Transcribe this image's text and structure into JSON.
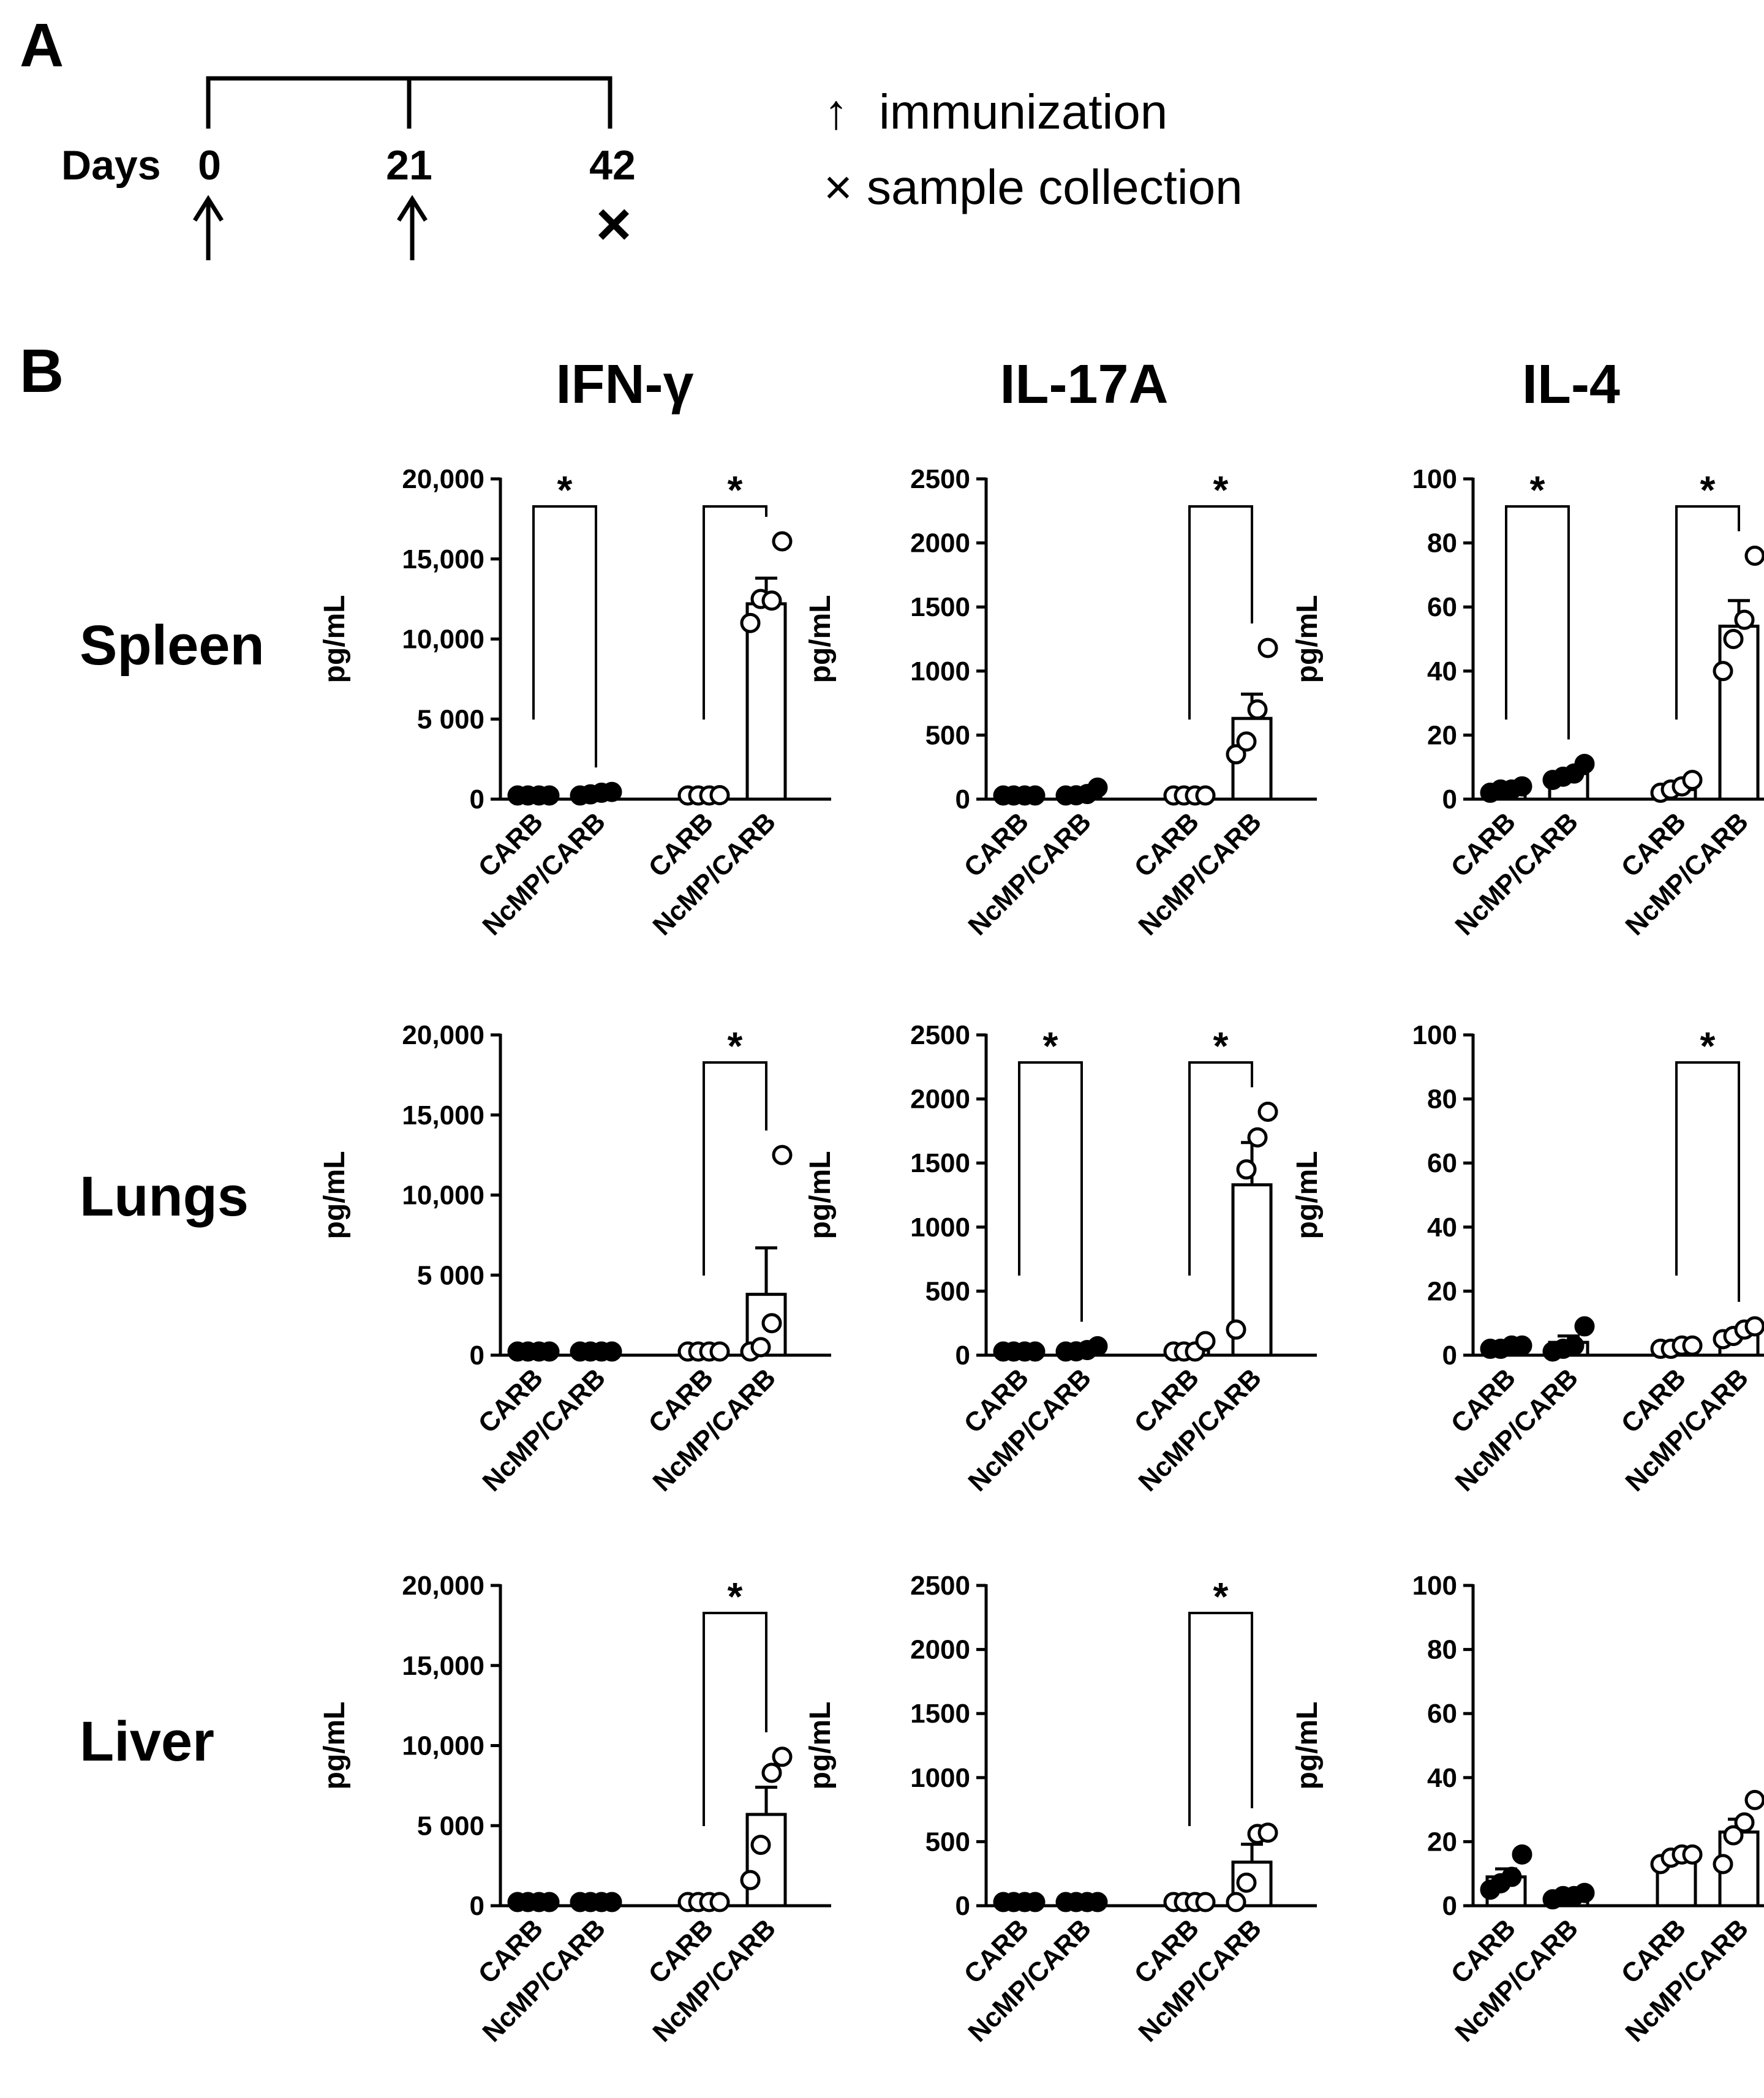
{
  "panel_a": {
    "panel_label": "A",
    "days_label": "Days",
    "days": [
      "0",
      "21",
      "42"
    ],
    "legend": {
      "immunization": "immunization",
      "sample_collection": "sample collection"
    },
    "arrow_glyph": "↑",
    "cross_glyph": "×"
  },
  "panel_b": {
    "panel_label": "B",
    "column_titles": [
      "IFN-γ",
      "IL-17A",
      "IL-4"
    ],
    "row_titles": [
      "Spleen",
      "Lungs",
      "Liver"
    ]
  },
  "chart_data": [
    {
      "type": "bar",
      "organ": "Spleen",
      "cytokine": "IFN-γ",
      "ylabel": "pg/mL",
      "ylim": [
        0,
        20000
      ],
      "yticks": [
        0,
        5000,
        10000,
        15000,
        20000
      ],
      "ytick_labels": [
        "0",
        "5 000",
        "10,000",
        "15,000",
        "20,000"
      ],
      "categories": [
        "CARB",
        "NcMP/CARB",
        "CARB",
        "NcMP/CARB"
      ],
      "fills": [
        "filled",
        "filled",
        "open",
        "open"
      ],
      "values": [
        0,
        300,
        100,
        12200
      ],
      "sem": [
        0,
        80,
        60,
        1600
      ],
      "points": [
        [
          0,
          0,
          0,
          0
        ],
        [
          200,
          300,
          400,
          450
        ],
        [
          0,
          0,
          100,
          250
        ],
        [
          11000,
          12500,
          12400,
          16100
        ]
      ],
      "significance": [
        {
          "pair": [
            0,
            1
          ],
          "label": "*"
        },
        {
          "pair": [
            2,
            3
          ],
          "label": "*"
        }
      ]
    },
    {
      "type": "bar",
      "organ": "Spleen",
      "cytokine": "IL-17A",
      "ylabel": "pg/mL",
      "ylim": [
        0,
        2500
      ],
      "yticks": [
        0,
        500,
        1000,
        1500,
        2000,
        2500
      ],
      "ytick_labels": [
        "0",
        "500",
        "1000",
        "1500",
        "2000",
        "2500"
      ],
      "categories": [
        "CARB",
        "NcMP/CARB",
        "CARB",
        "NcMP/CARB"
      ],
      "fills": [
        "filled",
        "filled",
        "open",
        "open"
      ],
      "values": [
        10,
        40,
        5,
        630
      ],
      "sem": [
        3,
        15,
        3,
        190
      ],
      "points": [
        [
          5,
          10,
          10,
          15
        ],
        [
          20,
          30,
          40,
          90
        ],
        [
          0,
          0,
          5,
          10
        ],
        [
          350,
          450,
          700,
          1180
        ]
      ],
      "significance": [
        {
          "pair": [
            2,
            3
          ],
          "label": "*"
        }
      ]
    },
    {
      "type": "bar",
      "organ": "Spleen",
      "cytokine": "IL-4",
      "ylabel": "pg/mL",
      "ylim": [
        0,
        100
      ],
      "yticks": [
        0,
        20,
        40,
        60,
        80,
        100
      ],
      "ytick_labels": [
        "0",
        "20",
        "40",
        "60",
        "80",
        "100"
      ],
      "categories": [
        "CARB",
        "NcMP/CARB",
        "CARB",
        "NcMP/CARB"
      ],
      "fills": [
        "filled",
        "filled",
        "open",
        "open"
      ],
      "values": [
        3,
        8,
        3,
        54
      ],
      "sem": [
        0.5,
        1.2,
        1,
        8
      ],
      "points": [
        [
          2,
          3,
          3,
          4
        ],
        [
          6,
          7,
          8,
          11
        ],
        [
          2,
          3,
          4,
          6
        ],
        [
          40,
          50,
          56,
          76
        ]
      ],
      "significance": [
        {
          "pair": [
            0,
            1
          ],
          "label": "*"
        },
        {
          "pair": [
            2,
            3
          ],
          "label": "*"
        }
      ]
    },
    {
      "type": "bar",
      "organ": "Lungs",
      "cytokine": "IFN-γ",
      "ylabel": "pg/mL",
      "ylim": [
        0,
        20000
      ],
      "yticks": [
        0,
        5000,
        10000,
        15000,
        20000
      ],
      "ytick_labels": [
        "0",
        "5 000",
        "10,000",
        "15,000",
        "20,000"
      ],
      "categories": [
        "CARB",
        "NcMP/CARB",
        "CARB",
        "NcMP/CARB"
      ],
      "fills": [
        "filled",
        "filled",
        "open",
        "open"
      ],
      "values": [
        0,
        0,
        50,
        3800
      ],
      "sem": [
        0,
        0,
        30,
        2900
      ],
      "points": [
        [
          0,
          0,
          0,
          0
        ],
        [
          0,
          0,
          0,
          0
        ],
        [
          0,
          0,
          50,
          100
        ],
        [
          0,
          500,
          2000,
          12500
        ]
      ],
      "significance": [
        {
          "pair": [
            2,
            3
          ],
          "label": "*"
        }
      ]
    },
    {
      "type": "bar",
      "organ": "Lungs",
      "cytokine": "IL-17A",
      "ylabel": "pg/mL",
      "ylim": [
        0,
        2500
      ],
      "yticks": [
        0,
        500,
        1000,
        1500,
        2000,
        2500
      ],
      "ytick_labels": [
        "0",
        "500",
        "1000",
        "1500",
        "2000",
        "2500"
      ],
      "categories": [
        "CARB",
        "NcMP/CARB",
        "CARB",
        "NcMP/CARB"
      ],
      "fills": [
        "filled",
        "filled",
        "open",
        "open"
      ],
      "values": [
        5,
        40,
        40,
        1330
      ],
      "sem": [
        2,
        15,
        25,
        330
      ],
      "points": [
        [
          0,
          5,
          5,
          10
        ],
        [
          20,
          30,
          40,
          70
        ],
        [
          0,
          10,
          20,
          110
        ],
        [
          200,
          1450,
          1700,
          1900
        ]
      ],
      "significance": [
        {
          "pair": [
            0,
            1
          ],
          "label": "*"
        },
        {
          "pair": [
            2,
            3
          ],
          "label": "*"
        }
      ]
    },
    {
      "type": "bar",
      "organ": "Lungs",
      "cytokine": "IL-4",
      "ylabel": "pg/mL",
      "ylim": [
        0,
        100
      ],
      "yticks": [
        0,
        20,
        40,
        60,
        80,
        100
      ],
      "ytick_labels": [
        "0",
        "20",
        "40",
        "60",
        "80",
        "100"
      ],
      "categories": [
        "CARB",
        "NcMP/CARB",
        "CARB",
        "NcMP/CARB"
      ],
      "fills": [
        "filled",
        "filled",
        "open",
        "open"
      ],
      "values": [
        2.5,
        4,
        2.5,
        7
      ],
      "sem": [
        0.3,
        2,
        0.4,
        1
      ],
      "points": [
        [
          2,
          2,
          3,
          3
        ],
        [
          1,
          2,
          3,
          9
        ],
        [
          2,
          2,
          3,
          3
        ],
        [
          5,
          6,
          8,
          9
        ]
      ],
      "significance": [
        {
          "pair": [
            2,
            3
          ],
          "label": "*"
        }
      ]
    },
    {
      "type": "bar",
      "organ": "Liver",
      "cytokine": "IFN-γ",
      "ylabel": "pg/mL",
      "ylim": [
        0,
        20000
      ],
      "yticks": [
        0,
        5000,
        10000,
        15000,
        20000
      ],
      "ytick_labels": [
        "0",
        "5 000",
        "10,000",
        "15,000",
        "20,000"
      ],
      "categories": [
        "CARB",
        "NcMP/CARB",
        "CARB",
        "NcMP/CARB"
      ],
      "fills": [
        "filled",
        "filled",
        "open",
        "open"
      ],
      "values": [
        0,
        0,
        50,
        5700
      ],
      "sem": [
        0,
        0,
        30,
        1700
      ],
      "points": [
        [
          0,
          0,
          0,
          0
        ],
        [
          0,
          0,
          0,
          0
        ],
        [
          0,
          0,
          50,
          100
        ],
        [
          1600,
          3800,
          8300,
          9300
        ]
      ],
      "significance": [
        {
          "pair": [
            2,
            3
          ],
          "label": "*"
        }
      ]
    },
    {
      "type": "bar",
      "organ": "Liver",
      "cytokine": "IL-17A",
      "ylabel": "pg/mL",
      "ylim": [
        0,
        2500
      ],
      "yticks": [
        0,
        500,
        1000,
        1500,
        2000,
        2500
      ],
      "ytick_labels": [
        "0",
        "500",
        "1000",
        "1500",
        "2000",
        "2500"
      ],
      "categories": [
        "CARB",
        "NcMP/CARB",
        "CARB",
        "NcMP/CARB"
      ],
      "fills": [
        "filled",
        "filled",
        "open",
        "open"
      ],
      "values": [
        5,
        5,
        5,
        340
      ],
      "sem": [
        2,
        2,
        2,
        140
      ],
      "points": [
        [
          0,
          5,
          5,
          10
        ],
        [
          0,
          5,
          5,
          10
        ],
        [
          0,
          0,
          5,
          10
        ],
        [
          20,
          180,
          560,
          570
        ]
      ],
      "significance": [
        {
          "pair": [
            2,
            3
          ],
          "label": "*"
        }
      ]
    },
    {
      "type": "bar",
      "organ": "Liver",
      "cytokine": "IL-4",
      "ylabel": "pg/mL",
      "ylim": [
        0,
        100
      ],
      "yticks": [
        0,
        20,
        40,
        60,
        80,
        100
      ],
      "ytick_labels": [
        "0",
        "20",
        "40",
        "60",
        "80",
        "100"
      ],
      "categories": [
        "CARB",
        "NcMP/CARB",
        "CARB",
        "NcMP/CARB"
      ],
      "fills": [
        "filled",
        "filled",
        "open",
        "open"
      ],
      "values": [
        9,
        3,
        15,
        23
      ],
      "sem": [
        2.5,
        0.7,
        1,
        4
      ],
      "points": [
        [
          5,
          7,
          9,
          16
        ],
        [
          2,
          3,
          3,
          4
        ],
        [
          13,
          15,
          16,
          16
        ],
        [
          13,
          22,
          26,
          33
        ]
      ],
      "significance": []
    }
  ]
}
